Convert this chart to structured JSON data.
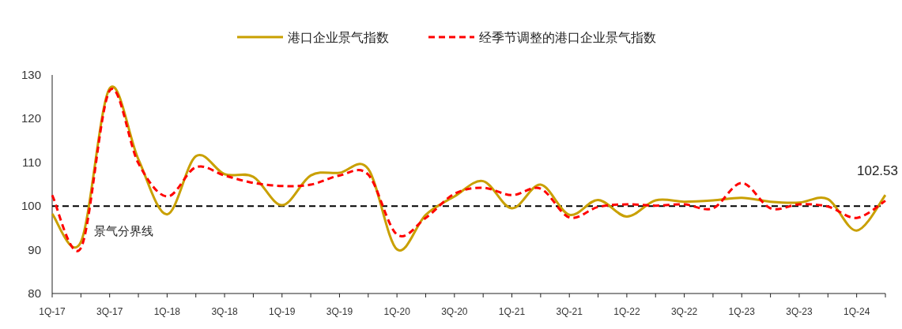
{
  "chart_data": {
    "type": "line",
    "categories": [
      "1Q-17",
      null,
      "3Q-17",
      null,
      "1Q-18",
      null,
      "3Q-18",
      null,
      "1Q-19",
      null,
      "3Q-19",
      null,
      "1Q-20",
      null,
      "3Q-20",
      null,
      "1Q-21",
      null,
      "3Q-21",
      null,
      "1Q-22",
      null,
      "3Q-22",
      null,
      "1Q-23",
      null,
      "3Q-23",
      null,
      "1Q-24",
      null
    ],
    "series": [
      {
        "name": "港口企业景气指数",
        "color": "#c9a000",
        "line_style": "solid",
        "values": [
          98.2,
          91.8,
          126.9,
          110.7,
          98.1,
          111.4,
          107.3,
          106.7,
          100.2,
          107.0,
          107.6,
          108.5,
          90.1,
          98.0,
          102.2,
          105.7,
          99.5,
          104.9,
          98.0,
          101.4,
          97.6,
          101.3,
          101.0,
          101.3,
          101.9,
          101.0,
          100.8,
          101.6,
          94.4,
          102.53
        ]
      },
      {
        "name": "经季节调整的港口企业景气指数",
        "color": "#ff0000",
        "line_style": "dashed",
        "values": [
          102.5,
          90.4,
          126.4,
          109.8,
          102.2,
          108.9,
          107.0,
          105.3,
          104.6,
          104.9,
          107.0,
          107.2,
          93.5,
          97.3,
          102.8,
          104.2,
          102.5,
          104.0,
          97.4,
          99.8,
          100.4,
          100.1,
          100.4,
          99.5,
          105.3,
          99.5,
          100.4,
          99.9,
          97.3,
          101.2
        ]
      }
    ],
    "ylim": [
      80,
      130
    ],
    "yticks": [
      80,
      90,
      100,
      110,
      120,
      130
    ],
    "ref_lines": [
      {
        "axis": "y",
        "value": 100,
        "label": "景气分界线",
        "color": "#000000",
        "line_style": "dashed"
      }
    ],
    "annotations": [
      "102.53"
    ],
    "legend": "top"
  }
}
